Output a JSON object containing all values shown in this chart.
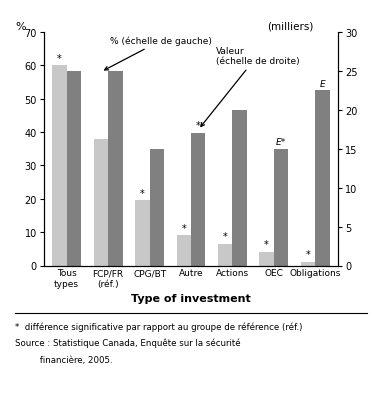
{
  "categories": [
    "Tous\ntypes",
    "FCP/FR\n(réf.)",
    "CPG/BT",
    "Autre",
    "Actions",
    "OEC",
    "Obligations"
  ],
  "pct_values": [
    60,
    38,
    19.5,
    9,
    6.5,
    4,
    1
  ],
  "val_values": [
    25,
    25,
    15,
    17,
    20,
    15,
    22.5
  ],
  "pct_star": [
    true,
    false,
    true,
    true,
    true,
    true,
    true
  ],
  "val_star": [
    false,
    false,
    false,
    true,
    false,
    false,
    false
  ],
  "val_labels": [
    "",
    "",
    "",
    "",
    "",
    "E*",
    "E"
  ],
  "bar_width": 0.35,
  "pct_color": "#c8c8c8",
  "val_color": "#808080",
  "yleft_min": 0,
  "yleft_max": 70,
  "yright_min": 0,
  "yright_max": 30,
  "xlabel": "Type of investment",
  "left_label": "%",
  "right_label": "(milliers)",
  "yticks_left": [
    0,
    10,
    20,
    30,
    40,
    50,
    60,
    70
  ],
  "yticks_right": [
    0,
    5,
    10,
    15,
    20,
    25,
    30
  ],
  "footnote_line1": "*  différence significative par rapport au groupe de référence (réf.)",
  "footnote_line2": "Source : Statistique Canada, Enquête sur la sécurité",
  "footnote_line3": "         financière, 2005.",
  "top_bar_color": "#4a7db5",
  "bottom_bar_color": "#4a7db5",
  "bg_color": "#ffffff"
}
